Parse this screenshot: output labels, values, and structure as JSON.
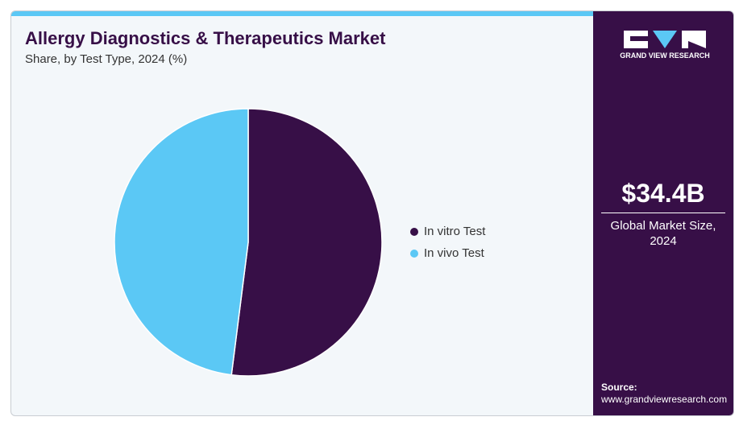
{
  "chart_data": {
    "type": "pie",
    "title": "Allergy Diagnostics & Therapeutics Market",
    "subtitle": "Share, by Test Type, 2024 (%)",
    "categories": [
      "In vitro Test",
      "In vivo Test"
    ],
    "values": [
      52,
      48
    ],
    "colors": [
      "#370f47",
      "#5bc8f5"
    ]
  },
  "sidebar": {
    "logo_text": "GRAND VIEW RESEARCH",
    "market_size": "$34.4B",
    "market_size_label": "Global Market Size, 2024",
    "source_label": "Source:",
    "source_url": "www.grandviewresearch.com"
  }
}
